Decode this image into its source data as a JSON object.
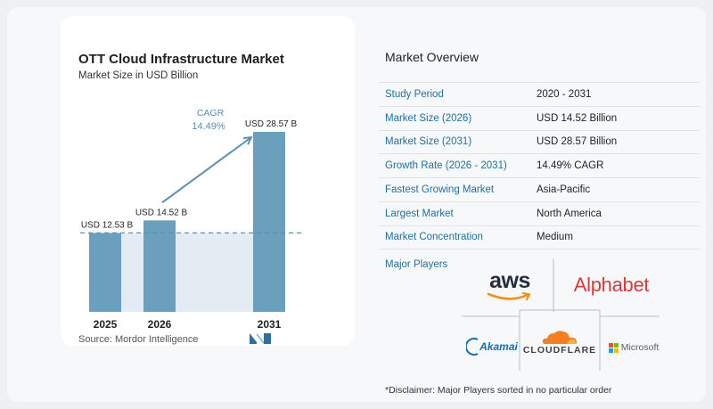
{
  "chart": {
    "title": "OTT Cloud Infrastructure Market",
    "subtitle": "Market Size in USD Billion",
    "source": "Source:  Mordor Intelligence",
    "cagr_label": "CAGR",
    "cagr_value": "14.49%"
  },
  "chart_data": {
    "type": "bar",
    "title": "OTT Cloud Infrastructure Market",
    "subtitle": "Market Size in USD Billion",
    "categories": [
      "2025",
      "2026",
      "2031"
    ],
    "values": [
      12.53,
      14.52,
      28.57
    ],
    "data_labels": [
      "USD 12.53 B",
      "USD 14.52 B",
      "USD 28.57 B"
    ],
    "unit": "USD Billion",
    "annotation": {
      "label": "CAGR",
      "value": "14.49%"
    },
    "xlabel": "",
    "ylabel": "",
    "ylim": [
      0,
      30
    ],
    "bar_color": "#6a9fbe",
    "grid": false
  },
  "overview": {
    "title": "Market Overview",
    "rows": [
      {
        "label": "Study Period",
        "value": "2020 - 2031"
      },
      {
        "label": "Market Size (2026)",
        "value": "USD 14.52 Billion"
      },
      {
        "label": "Market Size (2031)",
        "value": "USD 28.57 Billion"
      },
      {
        "label": "Growth Rate (2026 - 2031)",
        "value": "14.49% CAGR"
      },
      {
        "label": "Fastest Growing Market",
        "value": "Asia-Pacific"
      },
      {
        "label": "Largest Market",
        "value": "North America"
      },
      {
        "label": "Market Concentration",
        "value": "Medium"
      }
    ]
  },
  "players": {
    "label": "Major Players",
    "logos": {
      "aws": "aws",
      "alphabet": "Alphabet",
      "akamai": "Akamai",
      "cloudflare": "CLOUDFLARE",
      "microsoft": "Microsoft"
    }
  },
  "disclaimer": "*Disclaimer: Major Players sorted in no particular order",
  "colors": {
    "label_blue": "#1e6fa0",
    "bar": "#6a9fbe",
    "bar_light": "#e4ecf3",
    "arrow": "#5b8fb3",
    "alphabet_red": "#d83a3a",
    "cloudflare_orange": "#f38020",
    "akamai_blue": "#0b6fb8"
  }
}
